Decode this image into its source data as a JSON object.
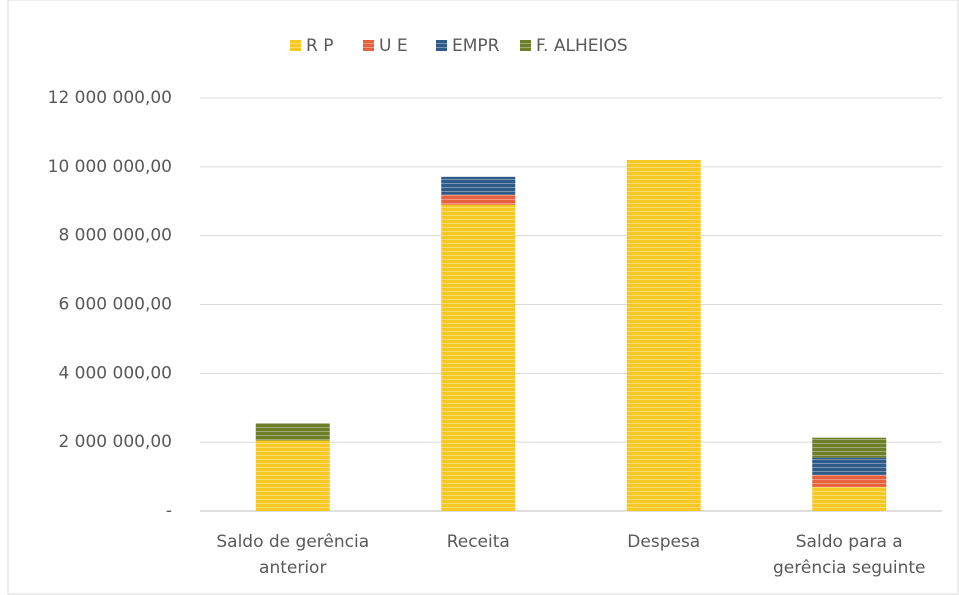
{
  "chart_data": {
    "type": "stacked_bar",
    "categories": [
      "Saldo de gerência anterior",
      "Receita",
      "Despesa",
      "Saldo para a gerência seguinte"
    ],
    "series": [
      {
        "name": "R P",
        "color": "#f6c823",
        "values": [
          2050000,
          8900000,
          10200000,
          700000
        ]
      },
      {
        "name": "U E",
        "color": "#e8613d",
        "values": [
          0,
          290000,
          0,
          350000
        ]
      },
      {
        "name": "EMPR",
        "color": "#2f5b88",
        "values": [
          0,
          520000,
          0,
          500000
        ]
      },
      {
        "name": "F. ALHEIOS",
        "color": "#6d7f2b",
        "values": [
          500000,
          0,
          0,
          580000
        ]
      }
    ],
    "ylim": [
      0,
      12000000
    ],
    "yticks": [
      {
        "value": 0,
        "label": "-"
      },
      {
        "value": 2000000,
        "label": "2 000 000,00"
      },
      {
        "value": 4000000,
        "label": "4 000 000,00"
      },
      {
        "value": 6000000,
        "label": "6 000 000,00"
      },
      {
        "value": 8000000,
        "label": "8 000 000,00"
      },
      {
        "value": 10000000,
        "label": "10 000 000,00"
      },
      {
        "value": 12000000,
        "label": "12 000 000,00"
      }
    ],
    "grid": true,
    "legend": "top"
  }
}
